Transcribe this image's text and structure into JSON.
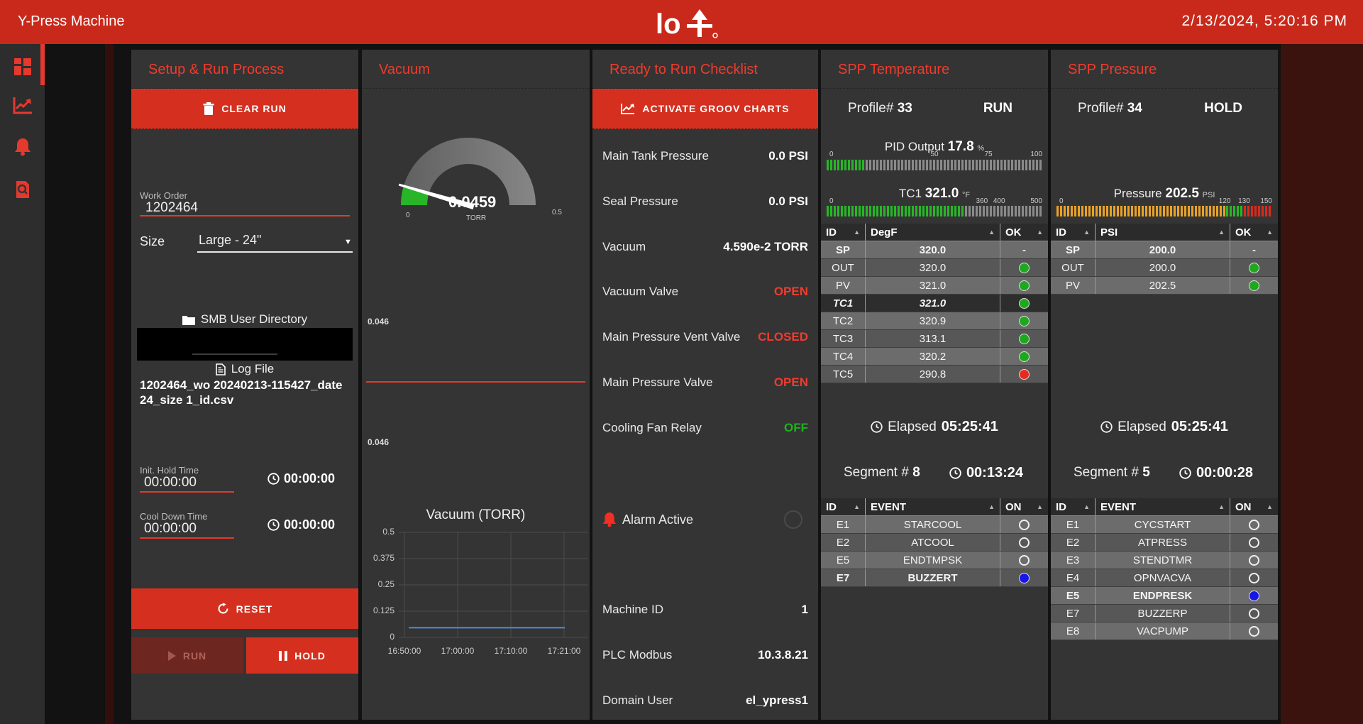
{
  "header": {
    "title": "Y-Press Machine",
    "logo_text": "lo",
    "datetime": "2/13/2024, 5:20:16 PM"
  },
  "sidebar": {
    "items": [
      {
        "icon": "dashboard-grid"
      },
      {
        "icon": "trend-chart"
      },
      {
        "icon": "bell"
      },
      {
        "icon": "doc-search"
      }
    ]
  },
  "setup": {
    "title": "Setup & Run Process",
    "clear_run_label": "CLEAR RUN",
    "work_order_label": "Work Order",
    "work_order_value": "1202464",
    "size_label": "Size",
    "size_value": "Large - 24\"",
    "smb_label": "SMB User Directory",
    "log_label": "Log File",
    "log_file": "1202464_wo 20240213-115427_date 24_size 1_id.csv",
    "init_hold_label": "Init. Hold Time",
    "init_hold_value": "00:00:00",
    "init_hold_timer": "00:00:00",
    "cool_down_label": "Cool Down Time",
    "cool_down_value": "00:00:00",
    "cool_down_timer": "00:00:00",
    "reset_label": "RESET",
    "run_label": "RUN",
    "hold_label": "HOLD"
  },
  "vacuum": {
    "title": "Vacuum",
    "gauge": {
      "value": 0.0459,
      "min": 0,
      "max": 0.5,
      "display": "0.0459",
      "unit": "TORR",
      "min_label": "0",
      "max_label": "0.5"
    },
    "strip": {
      "top_label": "0.046",
      "bottom_label": "0.046"
    },
    "chart_data": {
      "type": "line",
      "title": "Vacuum (TORR)",
      "x_ticks": [
        "16:50:00",
        "17:00:00",
        "17:10:00",
        "17:21:00"
      ],
      "y_ticks": [
        "0.5",
        "0.375",
        "0.25",
        "0.125",
        "0"
      ],
      "ylim": [
        0,
        0.5
      ],
      "series": [
        {
          "name": "Vacuum",
          "value": 0.046
        }
      ],
      "line_color": "#4a90d2"
    }
  },
  "checklist": {
    "title": "Ready to Run Checklist",
    "activate_label": "ACTIVATE GROOV CHARTS",
    "rows": [
      {
        "label": "Main Tank Pressure",
        "value": "0.0 PSI",
        "style": "white"
      },
      {
        "label": "Seal Pressure",
        "value": "0.0 PSI",
        "style": "white"
      },
      {
        "label": "Vacuum",
        "value": "4.590e-2 TORR",
        "style": "white"
      },
      {
        "label": "Vacuum Valve",
        "value": "OPEN",
        "style": "red"
      },
      {
        "label": "Main Pressure Vent Valve",
        "value": "CLOSED",
        "style": "red"
      },
      {
        "label": "Main Pressure Valve",
        "value": "OPEN",
        "style": "red"
      },
      {
        "label": "Cooling Fan Relay",
        "value": "OFF",
        "style": "green"
      }
    ],
    "alarm_label": "Alarm Active",
    "info_rows": [
      {
        "label": "Machine ID",
        "value": "1",
        "style": "white"
      },
      {
        "label": "PLC Modbus",
        "value": "10.3.8.21",
        "style": "white"
      },
      {
        "label": "Domain User",
        "value": "el_ypress1",
        "style": "white"
      }
    ]
  },
  "temperature": {
    "title": "SPP Temperature",
    "profile_label": "Profile#",
    "profile": "33",
    "state": "RUN",
    "pid": {
      "label": "PID Output",
      "value": 17.8,
      "max": 100,
      "display": "17.8",
      "unit": "%",
      "ticks": [
        "0",
        "50",
        "75",
        "100"
      ]
    },
    "tc1": {
      "label": "TC1",
      "value": 321.0,
      "max": 500,
      "display": "321.0",
      "unit": "°F",
      "ticks": [
        "0",
        "360",
        "400",
        "500"
      ]
    },
    "table": {
      "headers": [
        "ID",
        "DegF",
        "OK"
      ],
      "rows": [
        {
          "id": "SP",
          "value": "320.0",
          "ok": "dash",
          "variant": "sp"
        },
        {
          "id": "OUT",
          "value": "320.0",
          "ok": "green"
        },
        {
          "id": "PV",
          "value": "321.0",
          "ok": "green"
        },
        {
          "id": "TC1",
          "value": "321.0",
          "ok": "green",
          "variant": "selected-italic"
        },
        {
          "id": "TC2",
          "value": "320.9",
          "ok": "green"
        },
        {
          "id": "TC3",
          "value": "313.1",
          "ok": "green"
        },
        {
          "id": "TC4",
          "value": "320.2",
          "ok": "green"
        },
        {
          "id": "TC5",
          "value": "290.8",
          "ok": "red"
        }
      ]
    },
    "elapsed_label": "Elapsed",
    "elapsed": "05:25:41",
    "segment_label": "Segment #",
    "segment": "8",
    "segment_time": "00:13:24",
    "events": {
      "headers": [
        "ID",
        "EVENT",
        "ON"
      ],
      "rows": [
        {
          "id": "E1",
          "value": "STARCOOL",
          "ok": "open"
        },
        {
          "id": "E2",
          "value": "ATCOOL",
          "ok": "open"
        },
        {
          "id": "E5",
          "value": "ENDTMPSK",
          "ok": "open"
        },
        {
          "id": "E7",
          "value": "BUZZERT",
          "ok": "blue",
          "variant": "bold-row"
        }
      ]
    }
  },
  "pressure": {
    "title": "SPP Pressure",
    "profile_label": "Profile#",
    "profile": "34",
    "state": "HOLD",
    "bar": {
      "label": "Pressure",
      "value": 202.5,
      "max": 150,
      "display": "202.5",
      "unit": "PSI",
      "ticks": [
        "0",
        "120",
        "130",
        "150"
      ]
    },
    "table": {
      "headers": [
        "ID",
        "PSI",
        "OK"
      ],
      "rows": [
        {
          "id": "SP",
          "value": "200.0",
          "ok": "dash",
          "variant": "sp"
        },
        {
          "id": "OUT",
          "value": "200.0",
          "ok": "green"
        },
        {
          "id": "PV",
          "value": "202.5",
          "ok": "green"
        }
      ]
    },
    "elapsed_label": "Elapsed",
    "elapsed": "05:25:41",
    "segment_label": "Segment #",
    "segment": "5",
    "segment_time": "00:00:28",
    "events": {
      "headers": [
        "ID",
        "EVENT",
        "ON"
      ],
      "rows": [
        {
          "id": "E1",
          "value": "CYCSTART",
          "ok": "open"
        },
        {
          "id": "E2",
          "value": "ATPRESS",
          "ok": "open"
        },
        {
          "id": "E3",
          "value": "STENDTMR",
          "ok": "open"
        },
        {
          "id": "E4",
          "value": "OPNVACVA",
          "ok": "open"
        },
        {
          "id": "E5",
          "value": "ENDPRESK",
          "ok": "blue",
          "variant": "bold-row"
        },
        {
          "id": "E7",
          "value": "BUZZERP",
          "ok": "open"
        },
        {
          "id": "E8",
          "value": "VACPUMP",
          "ok": "open"
        }
      ]
    }
  }
}
